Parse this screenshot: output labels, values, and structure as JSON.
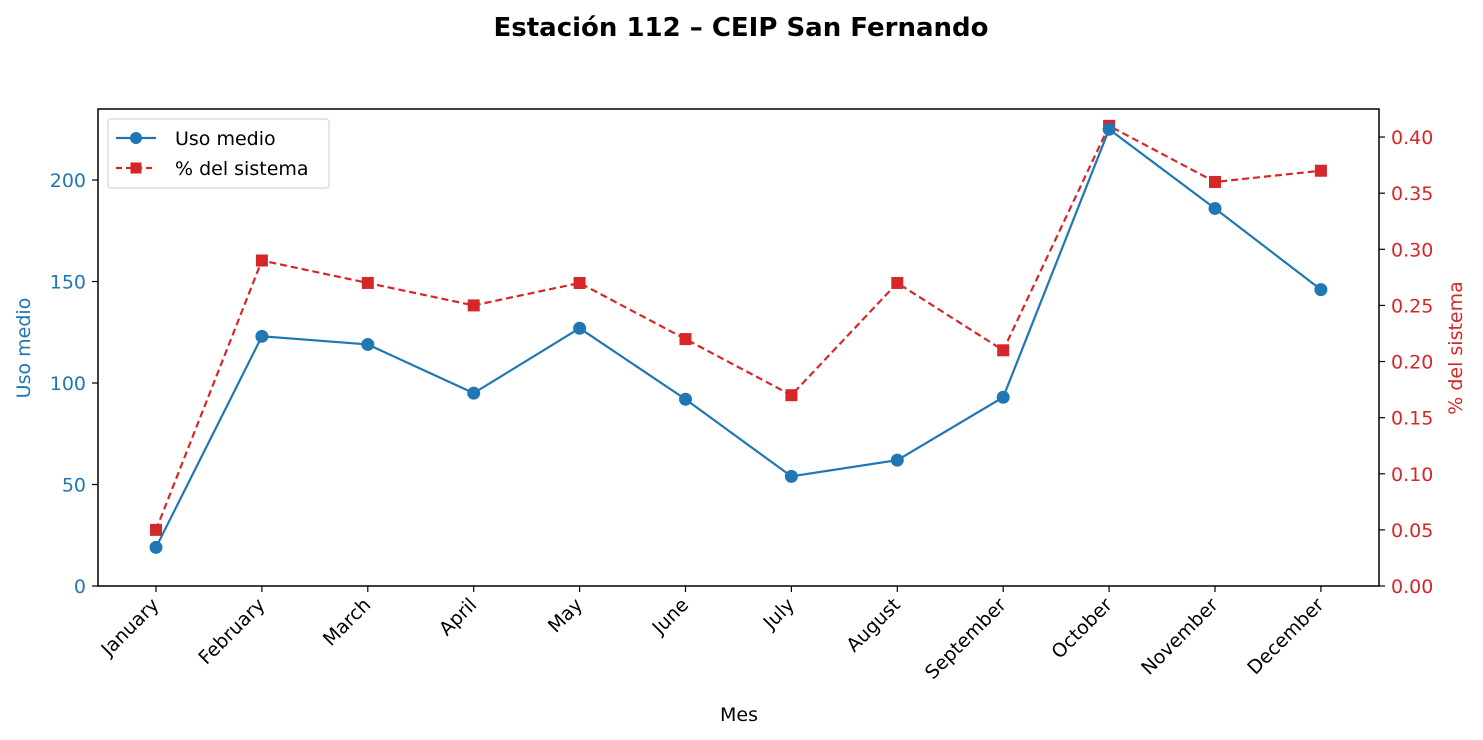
{
  "chart_data": {
    "type": "line",
    "title": "Estación 112 – CEIP San Fernando",
    "xlabel": "Mes",
    "categories": [
      "January",
      "February",
      "March",
      "April",
      "May",
      "June",
      "July",
      "August",
      "September",
      "October",
      "November",
      "December"
    ],
    "y_left": {
      "label": "Uso medio",
      "ylim": [
        0,
        235
      ],
      "ticks": [
        0,
        50,
        100,
        150,
        200
      ],
      "color": "#1f77b4"
    },
    "y_right": {
      "label": "% del sistema",
      "ylim": [
        0,
        0.425
      ],
      "ticks": [
        "0.00",
        "0.05",
        "0.10",
        "0.15",
        "0.20",
        "0.25",
        "0.30",
        "0.35",
        "0.40"
      ],
      "color": "#d62728"
    },
    "series": [
      {
        "name": "Uso medio",
        "axis": "left",
        "color": "#1f77b4",
        "line_style": "solid",
        "marker": "circle",
        "values": [
          19,
          123,
          119,
          95,
          127,
          92,
          54,
          62,
          93,
          225,
          186,
          146
        ]
      },
      {
        "name": "% del sistema",
        "axis": "right",
        "color": "#d62728",
        "line_style": "dashed",
        "marker": "square",
        "values": [
          0.05,
          0.29,
          0.27,
          0.25,
          0.27,
          0.22,
          0.17,
          0.27,
          0.21,
          0.41,
          0.36,
          0.37
        ]
      }
    ],
    "legend": {
      "position": "top-left"
    },
    "grid": false
  }
}
